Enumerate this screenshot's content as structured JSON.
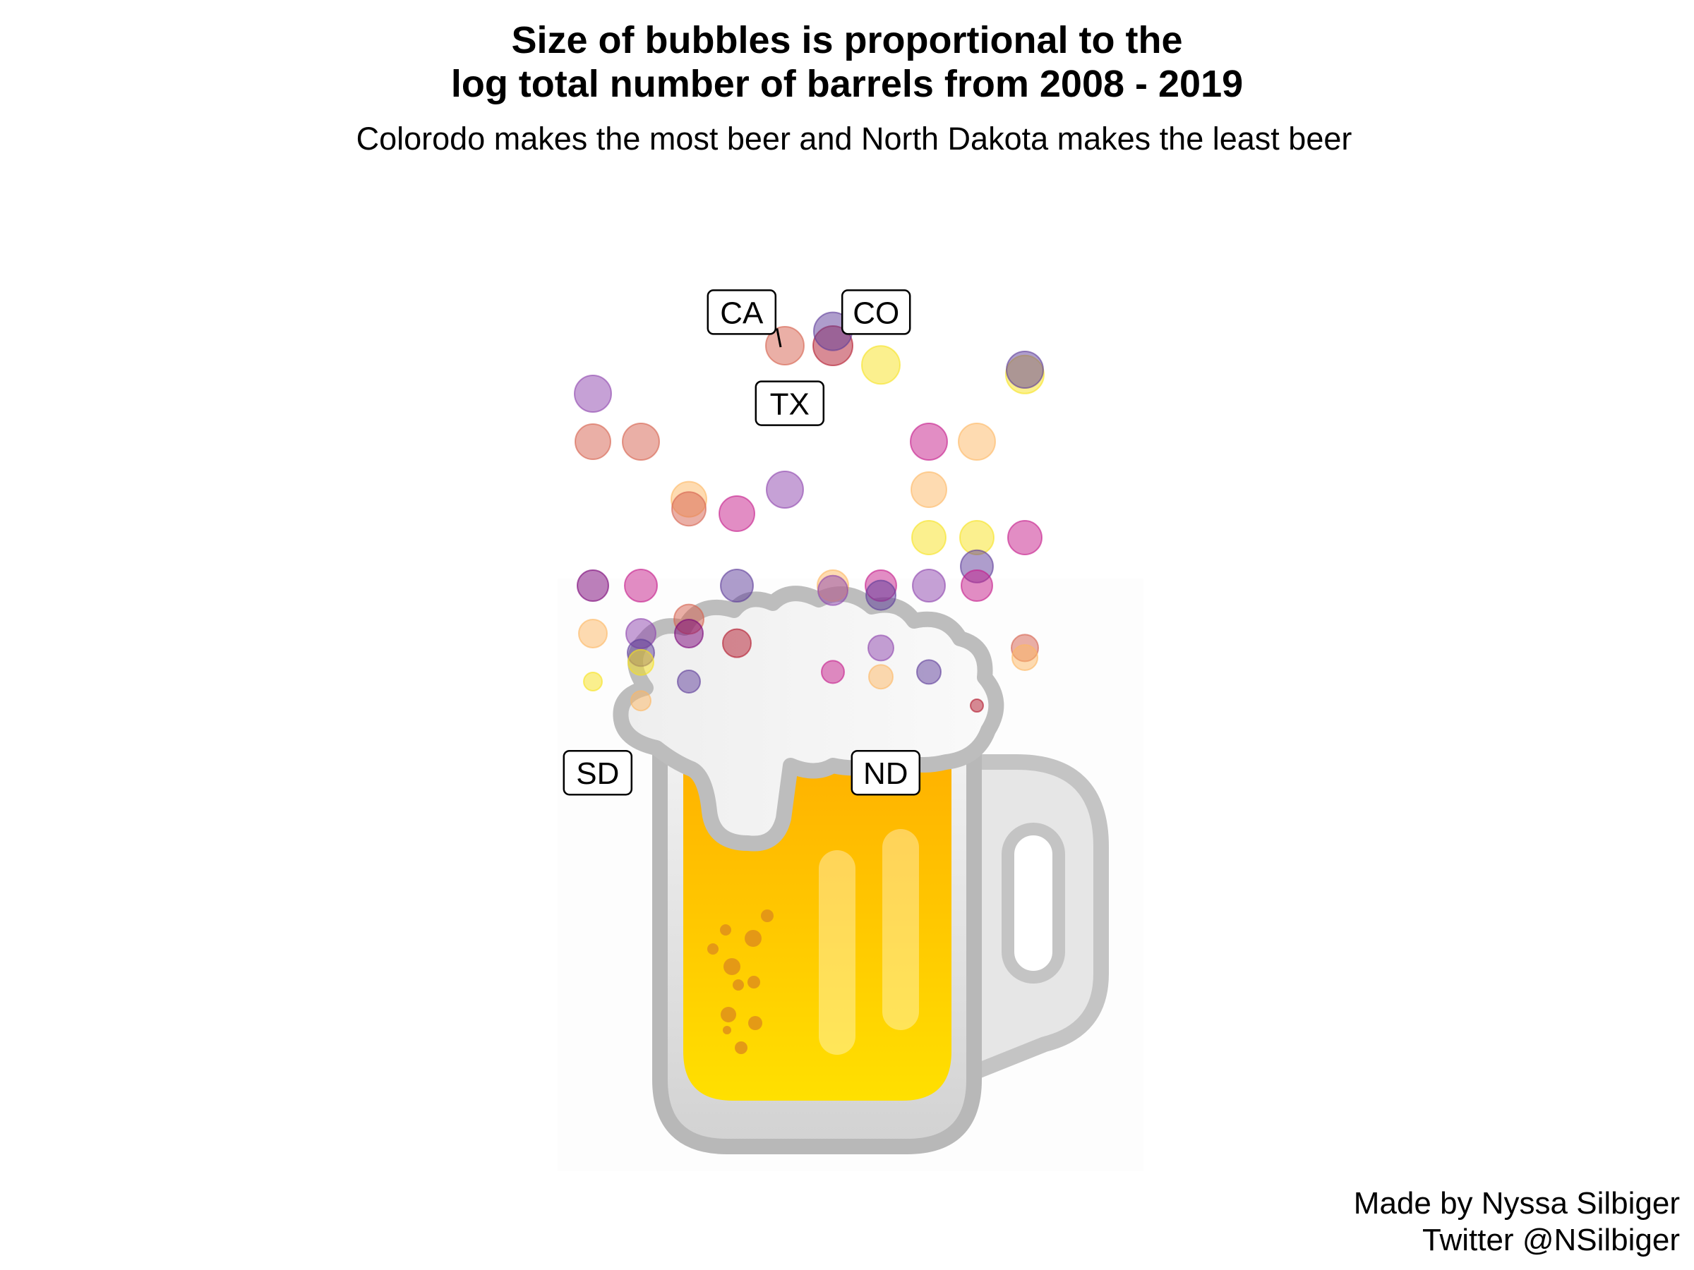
{
  "title_line1": "Size of bubbles is proportional to the",
  "title_line2": "log total number of barrels from 2008 - 2019",
  "subtitle": "Colorodo makes the most beer and North Dakota makes the least beer",
  "caption_line1": "Made by Nyssa Silbiger",
  "caption_line2": "Twitter @NSilbiger",
  "chart_data": {
    "type": "scatter",
    "palette": [
      "#7a0177",
      "#5e3c99",
      "#b2182b",
      "#d6604d",
      "#f4a582",
      "#fdb863",
      "#fee08b",
      "#f7e21e",
      "#8e44ad",
      "#c51b8a"
    ],
    "points": [
      {
        "x": 1,
        "y": 11,
        "size": 8.6,
        "color": "#8e44ad"
      },
      {
        "x": 1,
        "y": 10,
        "size": 8.4,
        "color": "#d6604d"
      },
      {
        "x": 1,
        "y": 7,
        "size": 7.4,
        "color": "#7a0177"
      },
      {
        "x": 1,
        "y": 6,
        "size": 6.8,
        "color": "#fdb863"
      },
      {
        "x": 1,
        "y": 5,
        "size": 4.4,
        "color": "#f7e21e"
      },
      {
        "x": 2,
        "y": 10,
        "size": 8.5,
        "color": "#d6604d"
      },
      {
        "x": 2,
        "y": 7,
        "size": 7.8,
        "color": "#c51b8a"
      },
      {
        "x": 2,
        "y": 6,
        "size": 6.9,
        "color": "#8e44ad"
      },
      {
        "x": 2,
        "y": 5.6,
        "size": 6.3,
        "color": "#5e3c99"
      },
      {
        "x": 2,
        "y": 5.4,
        "size": 6.1,
        "color": "#f7e21e"
      },
      {
        "x": 2,
        "y": 4.6,
        "size": 4.5,
        "color": "#fdb863"
      },
      {
        "x": 3,
        "y": 8.8,
        "size": 8.2,
        "color": "#fdb863"
      },
      {
        "x": 3,
        "y": 8.6,
        "size": 8.0,
        "color": "#d6604d"
      },
      {
        "x": 3,
        "y": 6.3,
        "size": 7.1,
        "color": "#d6604d"
      },
      {
        "x": 3,
        "y": 6.0,
        "size": 6.8,
        "color": "#7a0177"
      },
      {
        "x": 3,
        "y": 5.0,
        "size": 5.4,
        "color": "#5e3c99"
      },
      {
        "x": 4,
        "y": 8.5,
        "size": 8.2,
        "color": "#c51b8a"
      },
      {
        "x": 4,
        "y": 7,
        "size": 7.6,
        "color": "#5e3c99"
      },
      {
        "x": 4,
        "y": 5.8,
        "size": 6.6,
        "color": "#b2182b"
      },
      {
        "x": 5,
        "y": 12,
        "size": 9.0,
        "color": "#d6604d"
      },
      {
        "x": 5,
        "y": 9,
        "size": 8.5,
        "color": "#8e44ad"
      },
      {
        "x": 6,
        "y": 12,
        "size": 9.3,
        "color": "#b2182b"
      },
      {
        "x": 6,
        "y": 12.3,
        "size": 9.0,
        "color": "#5e3c99"
      },
      {
        "x": 6,
        "y": 7,
        "size": 7.2,
        "color": "#fdb863"
      },
      {
        "x": 6,
        "y": 6.9,
        "size": 7.0,
        "color": "#8e44ad"
      },
      {
        "x": 6,
        "y": 5.2,
        "size": 5.4,
        "color": "#c51b8a"
      },
      {
        "x": 7,
        "y": 11.6,
        "size": 9.1,
        "color": "#f7e21e"
      },
      {
        "x": 7,
        "y": 7,
        "size": 7.3,
        "color": "#c51b8a"
      },
      {
        "x": 7,
        "y": 6.8,
        "size": 7.0,
        "color": "#5e3c99"
      },
      {
        "x": 7,
        "y": 5.7,
        "size": 6.0,
        "color": "#8e44ad"
      },
      {
        "x": 7,
        "y": 5.1,
        "size": 5.5,
        "color": "#fdb863"
      },
      {
        "x": 8,
        "y": 10,
        "size": 8.7,
        "color": "#c51b8a"
      },
      {
        "x": 8,
        "y": 9,
        "size": 8.2,
        "color": "#fdb863"
      },
      {
        "x": 8,
        "y": 8,
        "size": 7.9,
        "color": "#f7e21e"
      },
      {
        "x": 8,
        "y": 7,
        "size": 7.5,
        "color": "#8e44ad"
      },
      {
        "x": 8,
        "y": 5.2,
        "size": 5.6,
        "color": "#5e3c99"
      },
      {
        "x": 9,
        "y": 10,
        "size": 8.6,
        "color": "#fdb863"
      },
      {
        "x": 9,
        "y": 8,
        "size": 8.0,
        "color": "#f7e21e"
      },
      {
        "x": 9,
        "y": 7.4,
        "size": 7.6,
        "color": "#5e3c99"
      },
      {
        "x": 9,
        "y": 7.0,
        "size": 7.2,
        "color": "#c51b8a"
      },
      {
        "x": 9,
        "y": 4.5,
        "size": 3.0,
        "color": "#b2182b"
      },
      {
        "x": 10,
        "y": 11.4,
        "size": 9.0,
        "color": "#f7e21e"
      },
      {
        "x": 10,
        "y": 11.5,
        "size": 8.8,
        "color": "#5e3c99"
      },
      {
        "x": 10,
        "y": 8,
        "size": 7.9,
        "color": "#c51b8a"
      },
      {
        "x": 10,
        "y": 5.7,
        "size": 6.3,
        "color": "#d6604d"
      },
      {
        "x": 10,
        "y": 5.5,
        "size": 6.1,
        "color": "#fdb863"
      }
    ],
    "labels": [
      {
        "text": "CA",
        "x": 5,
        "y": 12,
        "lx": 4.1,
        "ly": 12.7
      },
      {
        "text": "TX",
        "x": 5,
        "y": 12,
        "lx": 5.1,
        "ly": 10.8
      },
      {
        "text": "CO",
        "x": 6,
        "y": 12,
        "lx": 6.9,
        "ly": 12.7
      },
      {
        "text": "SD",
        "x": 1,
        "y": 5,
        "lx": 1.1,
        "ly": 3.1
      },
      {
        "text": "ND",
        "x": 9,
        "y": 4.5,
        "lx": 7.1,
        "ly": 3.1
      }
    ]
  }
}
